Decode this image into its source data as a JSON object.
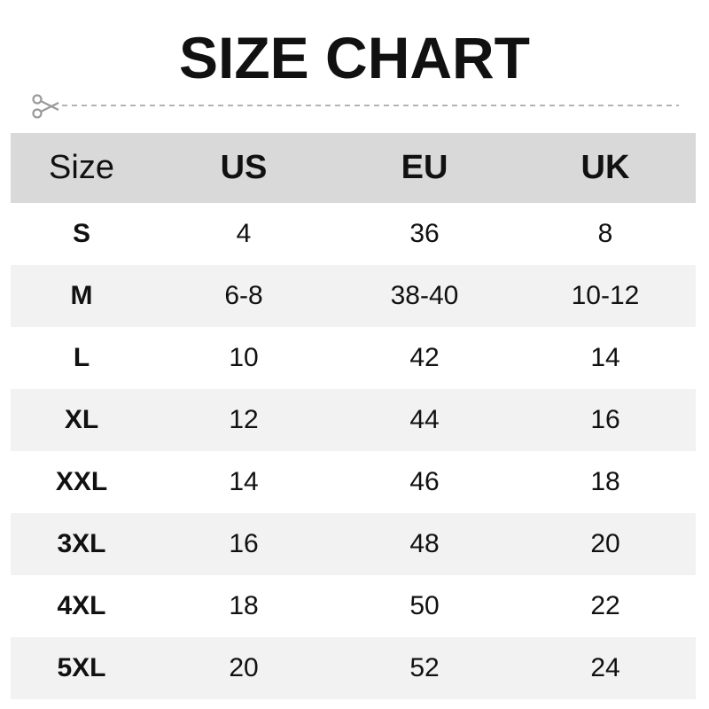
{
  "title": "SIZE CHART",
  "icons": {
    "cut": "scissors-icon"
  },
  "colors": {
    "header_bg": "#d9d9d9",
    "alt_row_bg": "#f2f2f2",
    "dash": "#9a9a9a"
  },
  "chart_data": {
    "type": "table",
    "title": "SIZE CHART",
    "columns": [
      "Size",
      "US",
      "EU",
      "UK"
    ],
    "rows": [
      [
        "S",
        "4",
        "36",
        "8"
      ],
      [
        "M",
        "6-8",
        "38-40",
        "10-12"
      ],
      [
        "L",
        "10",
        "42",
        "14"
      ],
      [
        "XL",
        "12",
        "44",
        "16"
      ],
      [
        "XXL",
        "14",
        "46",
        "18"
      ],
      [
        "3XL",
        "16",
        "48",
        "20"
      ],
      [
        "4XL",
        "18",
        "50",
        "22"
      ],
      [
        "5XL",
        "20",
        "52",
        "24"
      ]
    ]
  }
}
